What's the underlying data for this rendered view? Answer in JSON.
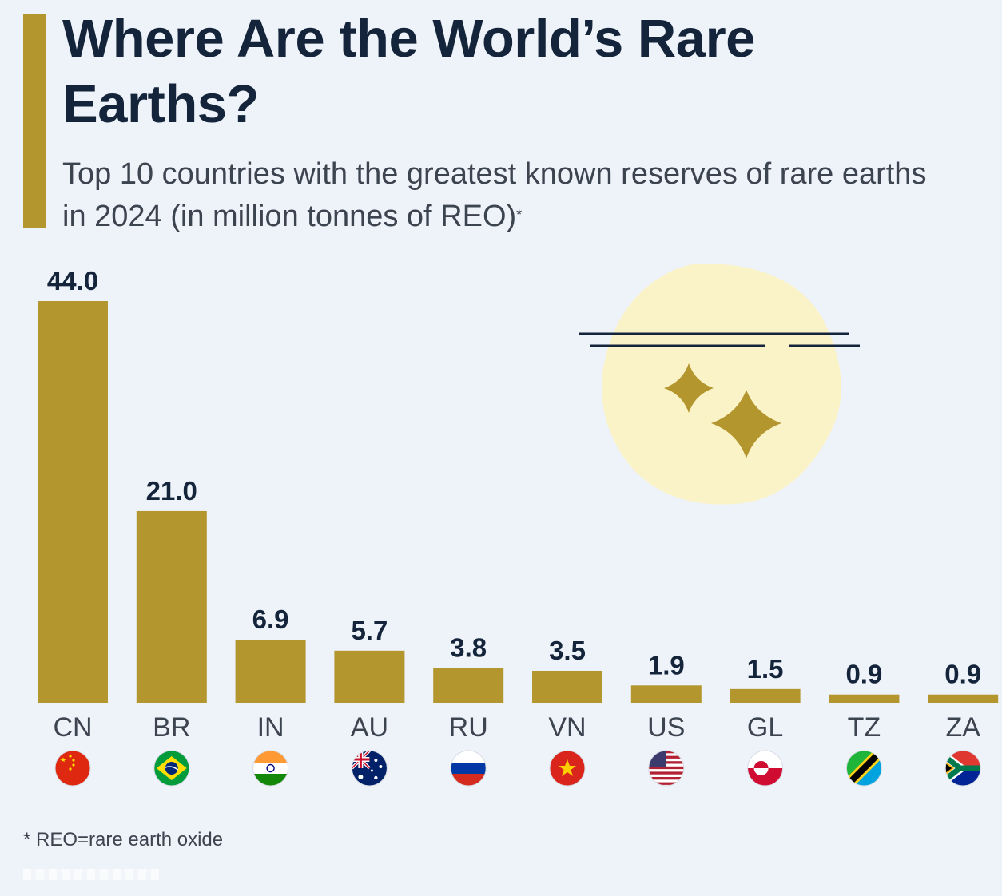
{
  "header": {
    "title": "Where Are the World’s Rare Earths?",
    "subtitle": "Top 10 countries with the greatest known reserves of rare earths in 2024 (in million tonnes of REO)",
    "subtitle_mark": "*"
  },
  "footnote": "* REO=rare earth oxide",
  "colors": {
    "bar": "#b4962e",
    "accent": "#b4962e",
    "text": "#14243a",
    "glow": "#fbf3c8"
  },
  "chart_data": {
    "type": "bar",
    "title": "Where Are the World’s Rare Earths?",
    "subtitle": "Top 10 countries with the greatest known reserves of rare earths in 2024 (in million tonnes of REO)",
    "xlabel": "",
    "ylabel": "",
    "ylim": [
      0,
      44
    ],
    "grid": false,
    "categories": [
      "CN",
      "BR",
      "IN",
      "AU",
      "RU",
      "VN",
      "US",
      "GL",
      "TZ",
      "ZA"
    ],
    "values": [
      44.0,
      21.0,
      6.9,
      5.7,
      3.8,
      3.5,
      1.9,
      1.5,
      0.9,
      0.9
    ],
    "value_labels": [
      "44.0",
      "21.0",
      "6.9",
      "5.7",
      "3.8",
      "3.5",
      "1.9",
      "1.5",
      "0.9",
      "0.9"
    ],
    "flags": [
      "china-flag",
      "brazil-flag",
      "india-flag",
      "australia-flag",
      "russia-flag",
      "vietnam-flag",
      "usa-flag",
      "greenland-flag",
      "tanzania-flag",
      "south-africa-flag"
    ]
  }
}
